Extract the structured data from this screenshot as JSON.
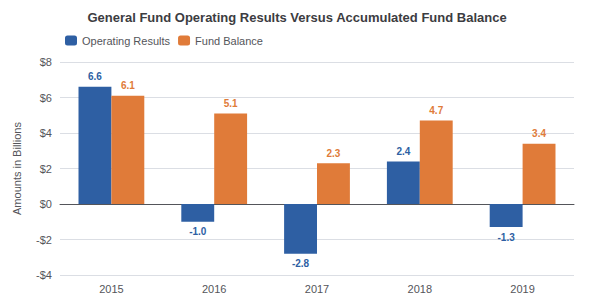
{
  "chart_data": {
    "type": "bar",
    "title": "General Fund Operating Results Versus Accumulated Fund Balance",
    "categories": [
      "2015",
      "2016",
      "2017",
      "2018",
      "2019"
    ],
    "series": [
      {
        "name": "Operating Results",
        "color": "#2E5FA3",
        "values": [
          6.6,
          -1.0,
          -2.8,
          2.4,
          -1.3
        ],
        "value_labels": [
          "6.6",
          "-1.0",
          "-2.8",
          "2.4",
          "-1.3"
        ]
      },
      {
        "name": "Fund Balance",
        "color": "#E07B39",
        "values": [
          6.1,
          5.1,
          2.3,
          4.7,
          3.4
        ]
      }
    ],
    "ylabel": "Amounts in Billions",
    "ylim": [
      -4,
      8
    ],
    "yticks": [
      {
        "value": -4,
        "label": "-$4"
      },
      {
        "value": -2,
        "label": "-$2"
      },
      {
        "value": 0,
        "label": "$0"
      },
      {
        "value": 2,
        "label": "$2"
      },
      {
        "value": 4,
        "label": "$4"
      },
      {
        "value": 6,
        "label": "$6"
      },
      {
        "value": 8,
        "label": "$8"
      }
    ],
    "grid": true,
    "legend": "upper left",
    "data_labels": true
  }
}
